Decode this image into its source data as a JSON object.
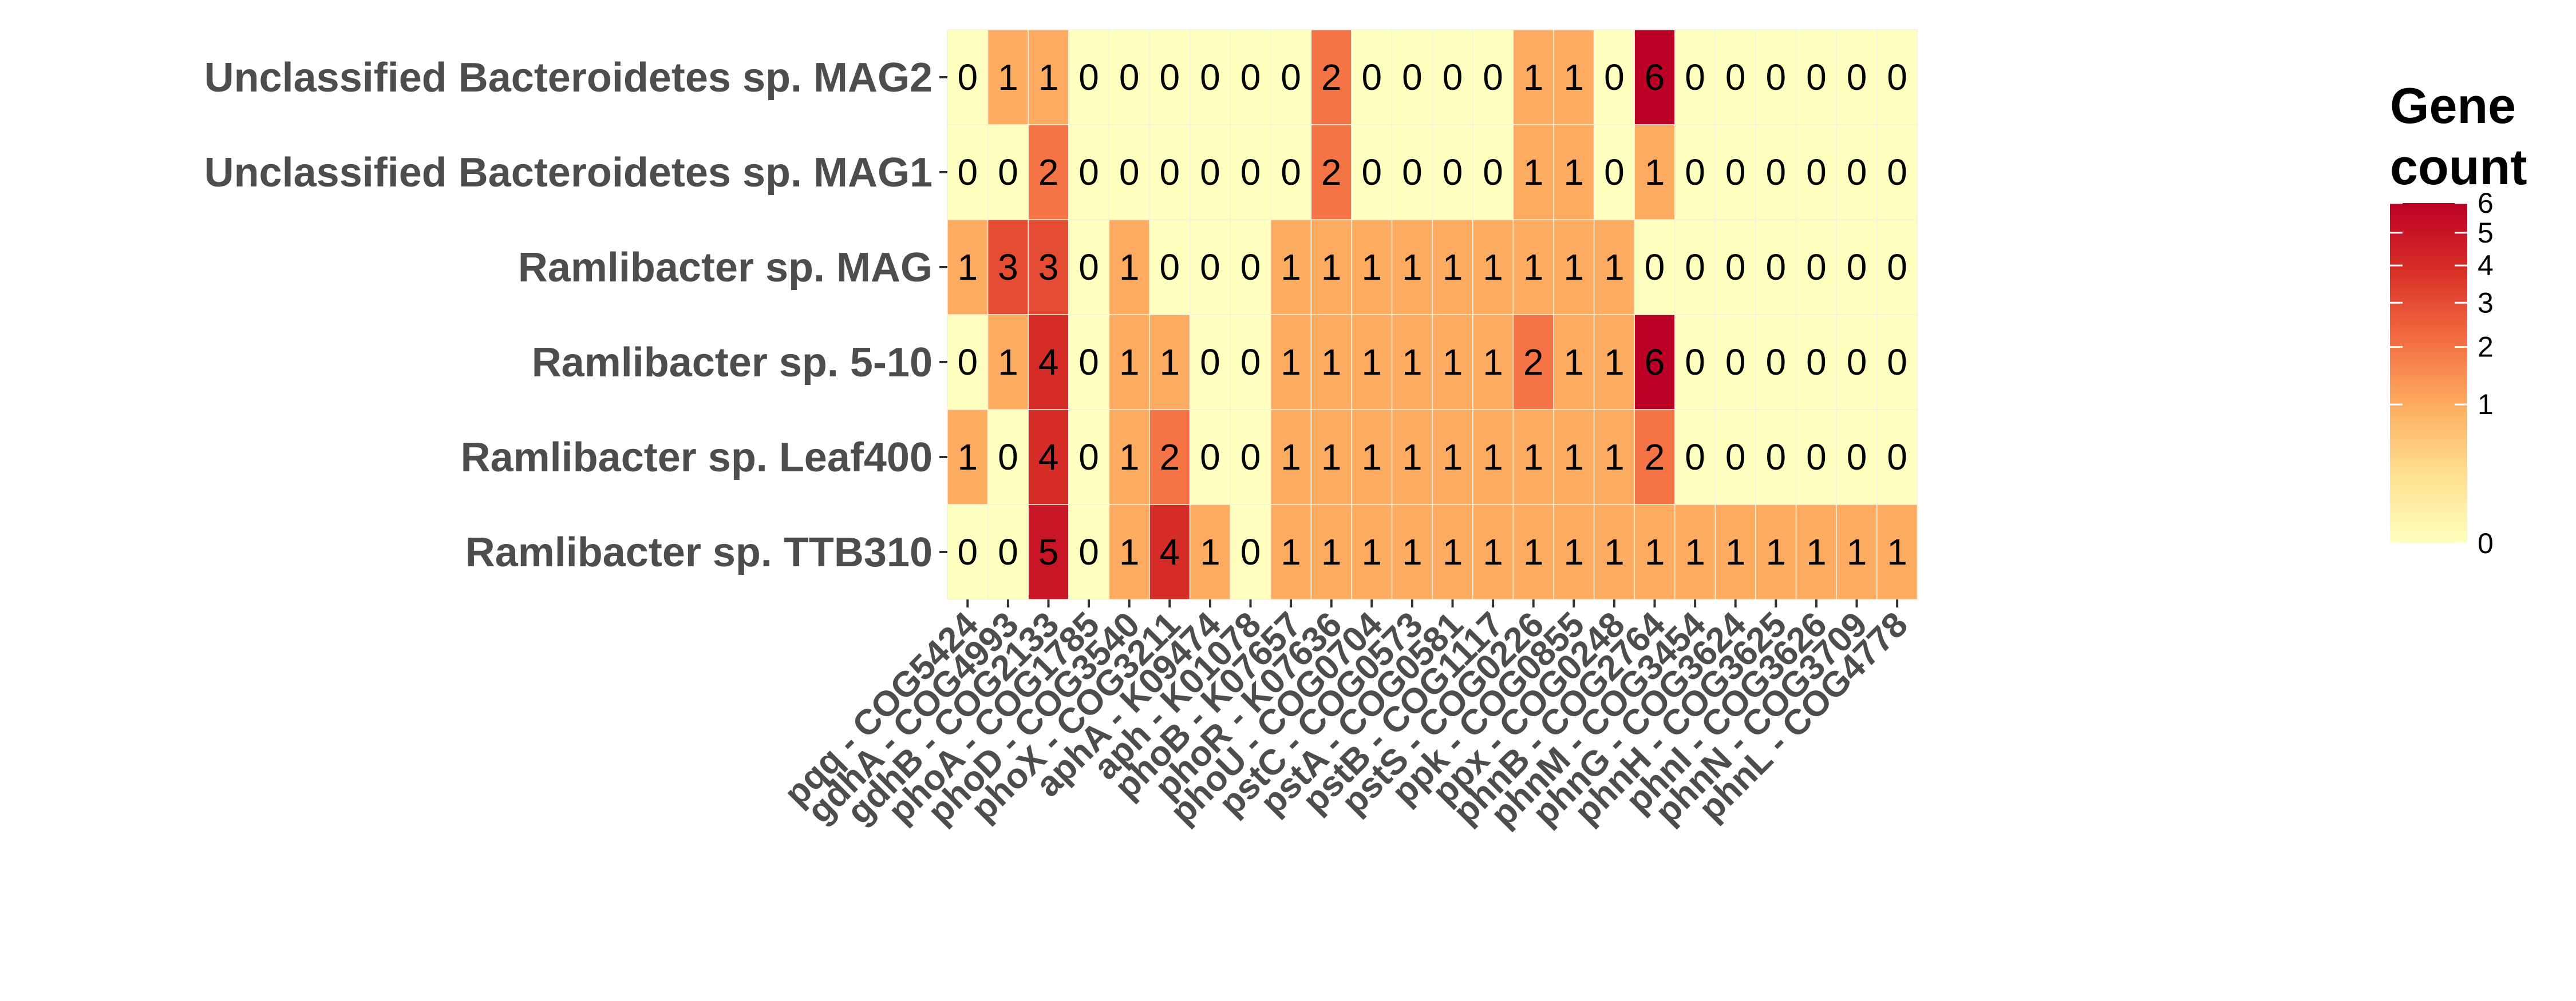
{
  "chart_data": {
    "type": "heatmap",
    "title": "",
    "xlabel": "",
    "ylabel": "",
    "x_categories": [
      "pqq - COG5424",
      "gdhA - COG4993",
      "gdhB - COG2133",
      "phoA - COG1785",
      "phoD - COG3540",
      "phoX - COG3211",
      "aphA - K09474",
      "aph - K01078",
      "phoB - K07657",
      "phoR - K07636",
      "phoU - COG0704",
      "pstC - COG0573",
      "pstA - COG0581",
      "pstB - COG1117",
      "pstS - COG0226",
      "ppk - COG0855",
      "ppx - COG0248",
      "phnB - COG2764",
      "phnM - COG3454",
      "phnG - COG3624",
      "phnH - COG3625",
      "phnI - COG3626",
      "phnN - COG3709",
      "phnL - COG4778"
    ],
    "y_categories": [
      "Unclassified Bacteroidetes sp. MAG2",
      "Unclassified Bacteroidetes sp. MAG1",
      "Ramlibacter sp. MAG",
      "Ramlibacter sp. 5-10",
      "Ramlibacter sp. Leaf400",
      "Ramlibacter sp. TTB310"
    ],
    "values": [
      [
        0,
        1,
        1,
        0,
        0,
        0,
        0,
        0,
        0,
        2,
        0,
        0,
        0,
        0,
        1,
        1,
        0,
        6,
        0,
        0,
        0,
        0,
        0,
        0
      ],
      [
        0,
        0,
        2,
        0,
        0,
        0,
        0,
        0,
        0,
        2,
        0,
        0,
        0,
        0,
        1,
        1,
        0,
        1,
        0,
        0,
        0,
        0,
        0,
        0
      ],
      [
        1,
        3,
        3,
        0,
        1,
        0,
        0,
        0,
        1,
        1,
        1,
        1,
        1,
        1,
        1,
        1,
        1,
        0,
        0,
        0,
        0,
        0,
        0,
        0
      ],
      [
        0,
        1,
        4,
        0,
        1,
        1,
        0,
        0,
        1,
        1,
        1,
        1,
        1,
        1,
        2,
        1,
        1,
        6,
        0,
        0,
        0,
        0,
        0,
        0
      ],
      [
        1,
        0,
        4,
        0,
        1,
        2,
        0,
        0,
        1,
        1,
        1,
        1,
        1,
        1,
        1,
        1,
        1,
        2,
        0,
        0,
        0,
        0,
        0,
        0
      ],
      [
        0,
        0,
        5,
        0,
        1,
        4,
        1,
        0,
        1,
        1,
        1,
        1,
        1,
        1,
        1,
        1,
        1,
        1,
        1,
        1,
        1,
        1,
        1,
        1
      ]
    ],
    "color_scale": {
      "type": "sqrt",
      "domain": [
        0,
        6
      ],
      "colors": [
        "#ffffbf",
        "#fee090",
        "#fdae61",
        "#f46d43",
        "#d73027",
        "#bd0026"
      ]
    },
    "legend": {
      "title_lines": [
        "Gene",
        "count"
      ],
      "ticks": [
        "0",
        "1",
        "2",
        "3",
        "4",
        "5",
        "6"
      ],
      "placement": "right"
    },
    "grid": false
  }
}
